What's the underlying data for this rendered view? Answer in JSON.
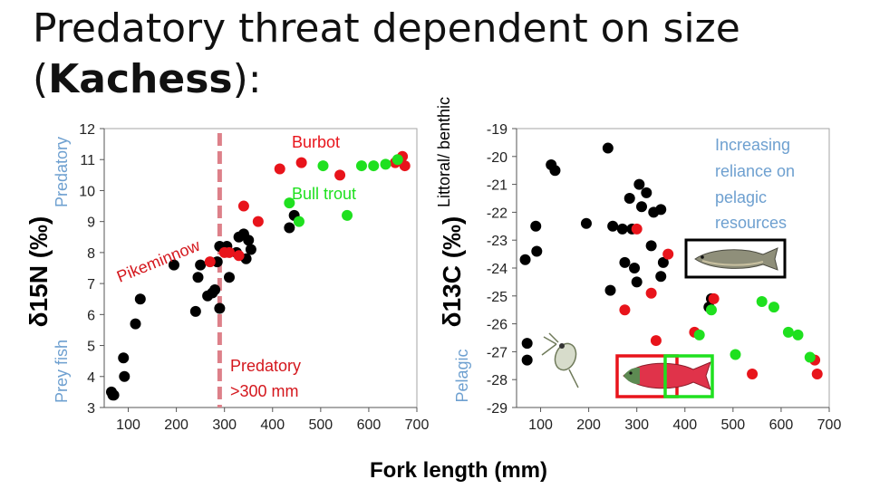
{
  "title": {
    "line1": "Predatory threat dependent on size",
    "line2_open": "(",
    "line2_bold": "Kachess",
    "line2_close": "):"
  },
  "colors": {
    "black": "#000000",
    "red": "#e8141b",
    "green": "#1fe01f",
    "side_label": "#6ea0d0",
    "burbot_text": "#e8141b",
    "bulltrout_text": "#1fe01f",
    "annotation_text": "#d4171d",
    "dashed_line": "#dd8089",
    "box_red": "#e8141b",
    "box_green": "#1fe01f"
  },
  "shared_xlabel": "Fork length (mm)",
  "chart_data": [
    {
      "type": "scatter",
      "ylabel": "δ15N (‰)",
      "side_label_top": "Predatory",
      "side_label_bottom": "Prey fish",
      "xlim": [
        50,
        700
      ],
      "ylim": [
        3,
        12
      ],
      "xticks": [
        "100",
        "200",
        "300",
        "400",
        "500",
        "600",
        "700"
      ],
      "yticks": [
        "3",
        "4",
        "5",
        "6",
        "7",
        "8",
        "9",
        "10",
        "11",
        "12"
      ],
      "vline_x": 290,
      "annotations": {
        "burbot": "Burbot",
        "bull_trout": "Bull trout",
        "pikeminnow": "Pikeminnow",
        "predatory_line1": "Predatory",
        "predatory_line2": ">300 mm"
      },
      "series": [
        {
          "name": "black",
          "color": "#000000",
          "points": [
            [
              65,
              3.5
            ],
            [
              68,
              3.4
            ],
            [
              70,
              3.4
            ],
            [
              90,
              4.6
            ],
            [
              92,
              4.0
            ],
            [
              115,
              5.7
            ],
            [
              125,
              6.5
            ],
            [
              195,
              7.6
            ],
            [
              240,
              6.1
            ],
            [
              245,
              7.2
            ],
            [
              250,
              7.6
            ],
            [
              265,
              6.6
            ],
            [
              275,
              6.7
            ],
            [
              280,
              6.8
            ],
            [
              285,
              7.7
            ],
            [
              290,
              6.2
            ],
            [
              290,
              8.2
            ],
            [
              305,
              8.2
            ],
            [
              310,
              7.2
            ],
            [
              325,
              8.0
            ],
            [
              330,
              8.5
            ],
            [
              340,
              8.6
            ],
            [
              345,
              7.8
            ],
            [
              350,
              8.4
            ],
            [
              355,
              8.1
            ],
            [
              435,
              8.8
            ],
            [
              445,
              9.2
            ]
          ]
        },
        {
          "name": "red",
          "color": "#e8141b",
          "points": [
            [
              270,
              7.7
            ],
            [
              300,
              8.0
            ],
            [
              310,
              8.0
            ],
            [
              330,
              7.9
            ],
            [
              340,
              9.5
            ],
            [
              370,
              9.0
            ],
            [
              415,
              10.7
            ],
            [
              460,
              10.9
            ],
            [
              540,
              10.5
            ],
            [
              655,
              10.9
            ],
            [
              670,
              11.1
            ],
            [
              675,
              10.8
            ]
          ]
        },
        {
          "name": "green",
          "color": "#1fe01f",
          "points": [
            [
              435,
              9.6
            ],
            [
              455,
              9.0
            ],
            [
              505,
              10.8
            ],
            [
              555,
              9.2
            ],
            [
              585,
              10.8
            ],
            [
              610,
              10.8
            ],
            [
              635,
              10.85
            ],
            [
              660,
              11.0
            ]
          ]
        }
      ]
    },
    {
      "type": "scatter",
      "ylabel": "δ13C (‰)",
      "side_label_top": "Littoral/ benthic",
      "side_label_bottom": "Pelagic",
      "xlim": [
        50,
        700
      ],
      "ylim": [
        -29,
        -19
      ],
      "xticks": [
        "100",
        "200",
        "300",
        "400",
        "500",
        "600",
        "700"
      ],
      "yticks": [
        "-19",
        "-20",
        "-21",
        "-22",
        "-23",
        "-24",
        "-25",
        "-26",
        "-27",
        "-28",
        "-29"
      ],
      "annotation": "Increasing reliance on pelagic resources",
      "annotation_lines": [
        "Increasing",
        "reliance on",
        "pelagic",
        "resources"
      ],
      "series": [
        {
          "name": "black",
          "color": "#000000",
          "points": [
            [
              68,
              -23.7
            ],
            [
              72,
              -26.7
            ],
            [
              72,
              -27.3
            ],
            [
              90,
              -22.5
            ],
            [
              92,
              -23.4
            ],
            [
              122,
              -20.3
            ],
            [
              130,
              -20.5
            ],
            [
              195,
              -22.4
            ],
            [
              240,
              -19.7
            ],
            [
              245,
              -24.8
            ],
            [
              250,
              -22.5
            ],
            [
              270,
              -22.6
            ],
            [
              275,
              -23.8
            ],
            [
              285,
              -21.5
            ],
            [
              290,
              -22.6
            ],
            [
              295,
              -24.0
            ],
            [
              300,
              -24.5
            ],
            [
              305,
              -21.0
            ],
            [
              310,
              -21.8
            ],
            [
              320,
              -21.3
            ],
            [
              330,
              -23.2
            ],
            [
              335,
              -22.0
            ],
            [
              350,
              -21.9
            ],
            [
              350,
              -24.3
            ],
            [
              355,
              -23.8
            ],
            [
              450,
              -25.4
            ],
            [
              455,
              -25.1
            ]
          ]
        },
        {
          "name": "red",
          "color": "#e8141b",
          "points": [
            [
              275,
              -25.5
            ],
            [
              300,
              -22.6
            ],
            [
              330,
              -24.9
            ],
            [
              340,
              -26.6
            ],
            [
              365,
              -23.5
            ],
            [
              420,
              -26.3
            ],
            [
              460,
              -25.1
            ],
            [
              540,
              -27.8
            ],
            [
              670,
              -27.3
            ],
            [
              675,
              -27.8
            ]
          ]
        },
        {
          "name": "green",
          "color": "#1fe01f",
          "points": [
            [
              430,
              -26.4
            ],
            [
              455,
              -25.5
            ],
            [
              505,
              -27.1
            ],
            [
              560,
              -25.2
            ],
            [
              585,
              -25.4
            ],
            [
              615,
              -26.3
            ],
            [
              635,
              -26.4
            ],
            [
              660,
              -27.2
            ]
          ]
        }
      ]
    }
  ]
}
